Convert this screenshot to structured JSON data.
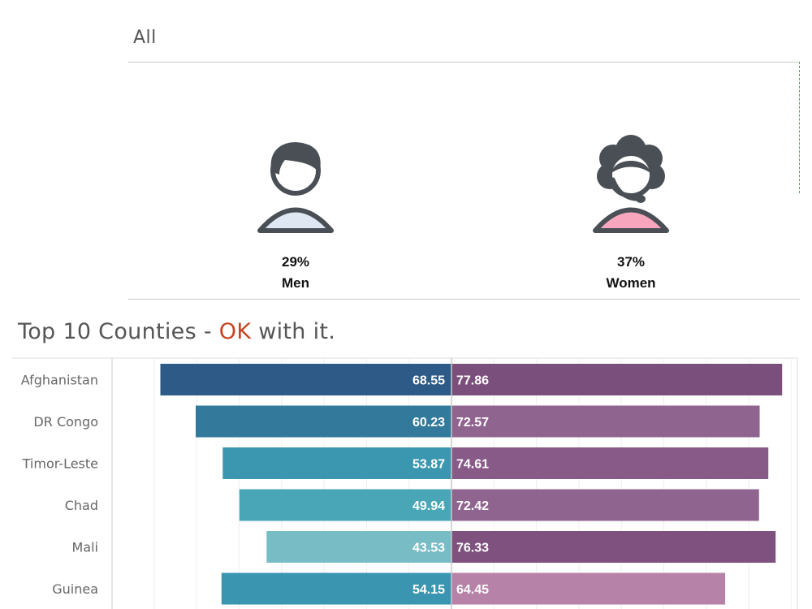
{
  "filter": {
    "label": "All"
  },
  "people": {
    "men": {
      "percent": "29%",
      "label": "Men",
      "shirt_color": "#dfe7f2",
      "icon": "man-avatar-icon"
    },
    "women": {
      "percent": "37%",
      "label": "Women",
      "shirt_color": "#f7a6bd",
      "icon": "woman-avatar-icon"
    }
  },
  "chart_title": {
    "prefix": "Top 10 Counties - ",
    "accent": "OK",
    "suffix": " with it."
  },
  "colors": {
    "accent": "#c8431f",
    "icon_dark": "#4a4f56"
  },
  "chart_data": {
    "type": "bar",
    "categories": [
      "Afghanistan",
      "DR Congo",
      "Timor-Leste",
      "Chad",
      "Mali",
      "Guinea"
    ],
    "series": [
      {
        "values": [
          68.55,
          60.23,
          53.87,
          49.94,
          43.53,
          54.15
        ],
        "colors": [
          "#2d5a87",
          "#33799b",
          "#3b97b0",
          "#48a6b7",
          "#78bcc5",
          "#3a96b0"
        ]
      },
      {
        "values": [
          77.86,
          72.57,
          74.61,
          72.42,
          76.33,
          64.45
        ],
        "colors": [
          "#7b4f7b",
          "#8f658f",
          "#885a88",
          "#8f658f",
          "#7e517e",
          "#b682a8"
        ]
      }
    ],
    "layout": "diverging",
    "grid": true
  }
}
